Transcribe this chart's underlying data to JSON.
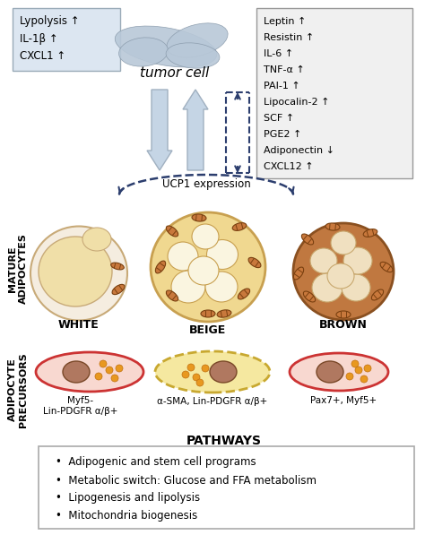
{
  "left_box": {
    "lines": [
      "Lypolysis ↑",
      "IL-1β ↑",
      "CXCL1 ↑"
    ],
    "bg": "#dce6f1",
    "border": "#9aabb8"
  },
  "right_box": {
    "lines": [
      "Leptin ↑",
      "Resistin ↑",
      "IL-6 ↑",
      "TNF-α ↑",
      "PAI-1 ↑",
      "Lipocalin-2 ↑",
      "SCF ↑",
      "PGE2 ↑",
      "Adiponectin ↓",
      "CXCL12 ↑"
    ],
    "bg": "#f0f0f0",
    "border": "#999999"
  },
  "tumor_label": "tumor cell",
  "adipocyte_label": "MATURE\nADIPOCYTES",
  "precursor_label": "ADIPOCYTE\nPRECURSORS",
  "ucp1_label": "UCP1 expression",
  "white_label": "WHITE",
  "beige_label": "BEIGE",
  "brown_label": "BROWN",
  "precursor_labels": [
    "Myf5-\nLin-PDGFR α/β+",
    "α-SMA, Lin-PDGFR α/β+",
    "Pax7+, Myf5+"
  ],
  "pathways_title": "PATHWAYS",
  "pathways_items": [
    "Adipogenic and stem cell programs",
    "Metabolic switch: Glucose and FFA metabolism",
    "Lipogenesis and lipolysis",
    "Mitochondria biogenesis"
  ],
  "bg_color": "#ffffff",
  "arrow_fill": "#c5d5e5",
  "arrow_edge": "#a0b0c0",
  "dashed_color": "#2c3e6e",
  "mito_color": "#c8783c",
  "mito_edge": "#7a4010",
  "white_outer_fill": "#f5ede0",
  "white_outer_edge": "#c8aa78",
  "white_lipid_fill": "#f0dfa8",
  "beige_outer_fill": "#f0d890",
  "beige_outer_edge": "#c8a050",
  "beige_lipid_fill": "#faf5e0",
  "brown_outer_fill": "#c07840",
  "brown_outer_edge": "#8a5020",
  "brown_lipid_fill": "#f0e0c0",
  "nucleus_fill": "#b07860",
  "nucleus_edge": "#7a4828",
  "orange_dot": "#e89820",
  "orange_dot_edge": "#c07010",
  "prec_red_fill": "#f8d8d0",
  "prec_red_edge": "#cc3333",
  "prec_beige_fill": "#f5e8a0",
  "prec_beige_edge": "#c8a830"
}
